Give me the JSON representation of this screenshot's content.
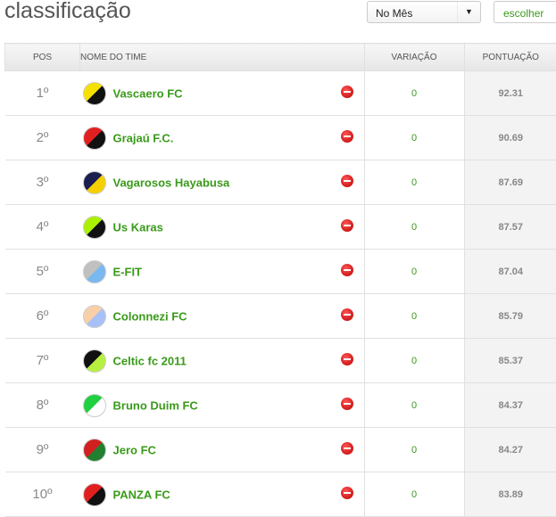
{
  "title": "classificação",
  "filter": {
    "selected": "No Mês",
    "button": "escolher"
  },
  "headers": {
    "pos": "POS",
    "name": "NOME DO TIME",
    "var": "VARIAÇÃO",
    "pts": "PONTUAÇÃO"
  },
  "rows": [
    {
      "pos": "1º",
      "name": "Vascaero FC",
      "var": "0",
      "pts": "92.31",
      "colors": [
        "#f5e000",
        "#111"
      ]
    },
    {
      "pos": "2º",
      "name": "Grajaú F.C.",
      "var": "0",
      "pts": "90.69",
      "colors": [
        "#e02020",
        "#111"
      ]
    },
    {
      "pos": "3º",
      "name": "Vagarosos Hayabusa",
      "var": "0",
      "pts": "87.69",
      "colors": [
        "#1a1f50",
        "#f5d000"
      ]
    },
    {
      "pos": "4º",
      "name": "Us Karas",
      "var": "0",
      "pts": "87.57",
      "colors": [
        "#aaf000",
        "#111"
      ]
    },
    {
      "pos": "5º",
      "name": "E-FIT",
      "var": "0",
      "pts": "87.04",
      "colors": [
        "#c0c0c0",
        "#7ab8f0"
      ]
    },
    {
      "pos": "6º",
      "name": "Colonnezi FC",
      "var": "0",
      "pts": "85.79",
      "colors": [
        "#f8cfa8",
        "#a8c0f8"
      ]
    },
    {
      "pos": "7º",
      "name": "Celtic fc 2011",
      "var": "0",
      "pts": "85.37",
      "colors": [
        "#111",
        "#b8f040"
      ]
    },
    {
      "pos": "8º",
      "name": "Bruno Duim FC",
      "var": "0",
      "pts": "84.37",
      "colors": [
        "#20d040",
        "#fff"
      ]
    },
    {
      "pos": "9º",
      "name": "Jero FC",
      "var": "0",
      "pts": "84.27",
      "colors": [
        "#d02020",
        "#208030"
      ]
    },
    {
      "pos": "10º",
      "name": "PANZA FC",
      "var": "0",
      "pts": "83.89",
      "colors": [
        "#e02020",
        "#111"
      ]
    }
  ]
}
